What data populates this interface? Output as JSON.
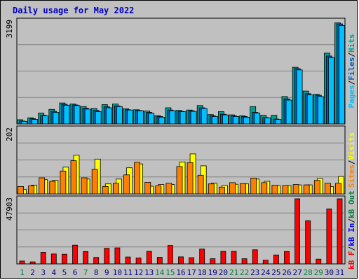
{
  "chart_data": [
    {
      "type": "bar",
      "title": "Daily usage for May 2022",
      "ylabel_max": "3199",
      "ymax": 3199,
      "series": [
        {
          "name": "Hits",
          "color": "#00a090",
          "values": [
            130,
            190,
            340,
            450,
            650,
            620,
            540,
            480,
            600,
            620,
            470,
            440,
            400,
            260,
            500,
            420,
            430,
            570,
            290,
            380,
            280,
            250,
            540,
            270,
            270,
            850,
            1760,
            1020,
            920,
            2200,
            3140
          ]
        },
        {
          "name": "Files",
          "color": "#0060c0",
          "values": [
            90,
            160,
            270,
            390,
            610,
            590,
            490,
            420,
            530,
            560,
            440,
            420,
            360,
            230,
            430,
            390,
            410,
            500,
            250,
            300,
            250,
            230,
            360,
            200,
            150,
            780,
            1720,
            940,
            890,
            2110,
            3110
          ]
        },
        {
          "name": "Pages",
          "color": "#00c0ff",
          "values": [
            80,
            140,
            250,
            360,
            580,
            570,
            460,
            380,
            500,
            540,
            430,
            410,
            330,
            210,
            410,
            380,
            390,
            480,
            230,
            280,
            230,
            210,
            340,
            190,
            140,
            740,
            1680,
            900,
            850,
            2060,
            3060
          ]
        }
      ]
    },
    {
      "type": "bar",
      "ylabel_max": "202",
      "ymax": 202,
      "series": [
        {
          "name": "Visits",
          "color": "#ffff00",
          "values": [
            14,
            27,
            44,
            42,
            83,
            120,
            46,
            108,
            31,
            46,
            81,
            93,
            24,
            29,
            29,
            99,
            124,
            87,
            33,
            26,
            30,
            31,
            46,
            39,
            26,
            26,
            28,
            28,
            48,
            23,
            54
          ]
        },
        {
          "name": "Sites",
          "color": "#ff8000",
          "values": [
            23,
            25,
            50,
            39,
            71,
            103,
            50,
            76,
            23,
            33,
            59,
            98,
            36,
            25,
            33,
            85,
            97,
            58,
            31,
            21,
            35,
            32,
            49,
            35,
            27,
            26,
            29,
            28,
            42,
            33,
            33
          ]
        }
      ]
    },
    {
      "type": "bar",
      "ylabel_max": "47903",
      "ymax": 47903,
      "series": [
        {
          "name": "KB F",
          "color": "#ff0000",
          "values": [
            2100,
            1500,
            8500,
            7300,
            7100,
            13800,
            9100,
            4800,
            11500,
            11800,
            5100,
            4400,
            9200,
            4900,
            13600,
            5200,
            4600,
            10900,
            3800,
            9200,
            9200,
            3800,
            10400,
            2800,
            6600,
            9100,
            47900,
            31800,
            3500,
            40500,
            47900
          ]
        }
      ]
    }
  ],
  "side_labels": {
    "top": [
      {
        "text": "Pages",
        "color": "#00c0ff"
      },
      {
        "text": "/",
        "color": "#000000"
      },
      {
        "text": "Files",
        "color": "#0060c0"
      },
      {
        "text": "/",
        "color": "#000000"
      },
      {
        "text": "Hits",
        "color": "#00a090"
      }
    ],
    "middle": [
      {
        "text": "Sites",
        "color": "#ff8000"
      },
      {
        "text": "/",
        "color": "#000000"
      },
      {
        "text": "Visits",
        "color": "#ffff00"
      }
    ],
    "bottom": [
      {
        "text": "kB F",
        "color": "#ff0000"
      },
      {
        "text": "/",
        "color": "#000000"
      },
      {
        "text": "kB In",
        "color": "#0000ff"
      },
      {
        "text": "/",
        "color": "#000000"
      },
      {
        "text": "kB Out",
        "color": "#008040"
      }
    ]
  },
  "days": [
    "1",
    "2",
    "3",
    "4",
    "5",
    "6",
    "7",
    "8",
    "9",
    "10",
    "11",
    "12",
    "13",
    "14",
    "15",
    "16",
    "17",
    "18",
    "19",
    "20",
    "21",
    "22",
    "23",
    "24",
    "25",
    "26",
    "27",
    "28",
    "29",
    "30",
    "31"
  ],
  "weekend_days": [
    1,
    7,
    14,
    15,
    21,
    22,
    28,
    29
  ],
  "colors": {
    "weekday": "#000080",
    "weekend": "#008040",
    "background": "#c0c0c0",
    "plot": "#c0c0c0"
  }
}
